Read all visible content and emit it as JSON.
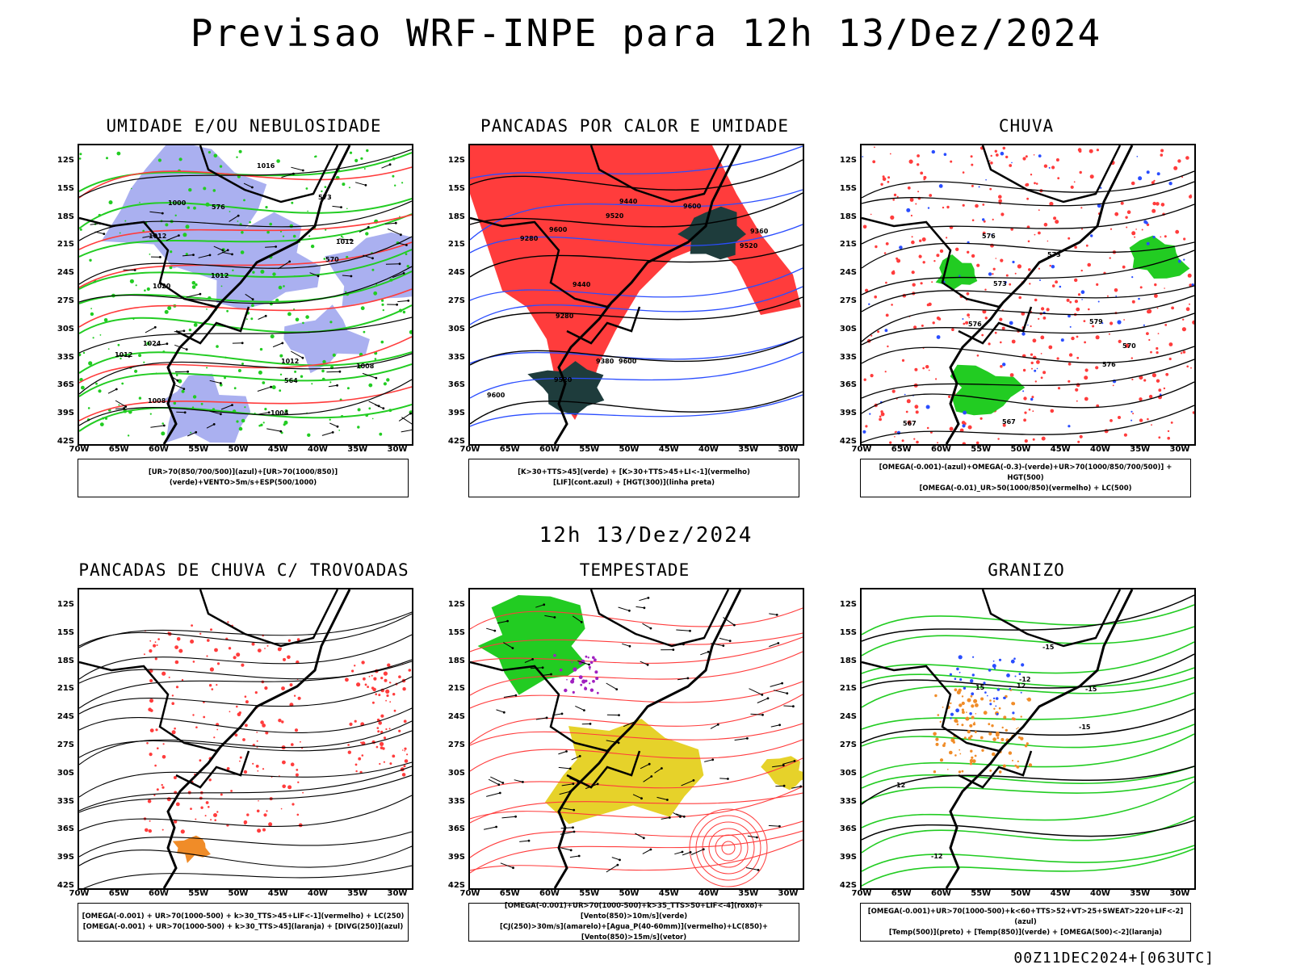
{
  "header": {
    "title": "Previsao WRF-INPE  para 12h 13/Dez/2024",
    "middle_title": "12h 13/Dez/2024"
  },
  "axes": {
    "lat_labels": [
      "12S",
      "15S",
      "18S",
      "21S",
      "24S",
      "27S",
      "30S",
      "33S",
      "36S",
      "39S",
      "42S"
    ],
    "lon_labels": [
      "70W",
      "65W",
      "60W",
      "55W",
      "50W",
      "45W",
      "40W",
      "35W",
      "30W"
    ]
  },
  "panels": [
    {
      "title": "UMIDADE E/OU NEBULOSIDADE",
      "legend": [
        "[UR>70(850/700/500)](azul)+[UR>70(1000/850)](verde)+VENTO>5m/s+ESP(500/1000)"
      ],
      "contour_labels": [
        "1008",
        "1012",
        "1012",
        "1012",
        "1004",
        "1008",
        "1012",
        "1016",
        "1020",
        "1024",
        "1012",
        "1000",
        "570",
        "573",
        "576",
        "564"
      ]
    },
    {
      "title": "PANCADAS POR CALOR E UMIDADE",
      "legend": [
        "[K>30+TTS>45](verde) + [K>30+TTS>45+LI<-1](vermelho)",
        "[LIF](cont.azul) + [HGT(300)](linha preta)"
      ],
      "contour_labels": [
        "9600",
        "9600",
        "9600",
        "9520",
        "9520",
        "9600",
        "9520",
        "9440",
        "9440",
        "9380",
        "9280",
        "9360",
        "9280"
      ]
    },
    {
      "title": "CHUVA",
      "legend": [
        "[OMEGA(-0.001)-(azul)+OMEGA(-0.3)-(verde)+UR>70(1000/850/700/500)] + HGT(500)",
        "[OMEGA(-0.01)_UR>50(1000/850)(vermelho) + LC(500)"
      ],
      "contour_labels": [
        "579",
        "576",
        "576",
        "573",
        "570",
        "567",
        "567",
        "576",
        "573"
      ]
    },
    {
      "title": "PANCADAS DE CHUVA C/ TROVOADAS",
      "legend": [
        "[OMEGA(-0.001) + UR>70(1000-500) + k>30_TTS>45+LIF<-1](vermelho) + LC(250)",
        "[OMEGA(-0.001) + UR>70(1000-500) + k>30_TTS>45](laranja) + [DIVG(250)](azul)"
      ],
      "contour_labels": []
    },
    {
      "title": "TEMPESTADE",
      "legend": [
        "[OMEGA(-0.001)+UR>70(1000-500)+k>35_TTS>50+LIF<-4](roxo)+[Vento(850)>10m/s](verde)",
        "[CJ(250)>30m/s](amarelo)+[Agua_P(40-60mm)](vermelho)+LC(850)+[Vento(850)>15m/s](vetor)"
      ],
      "contour_labels": []
    },
    {
      "title": "GRANIZO",
      "legend": [
        "[OMEGA(-0.001)+UR>70(1000-500)+k<60+TTS>52+VT>25+SWEAT>220+LIF<-2](azul)",
        "[Temp(500)](preto) + [Temp(850)](verde) + [OMEGA(500)<-2](laranja)"
      ],
      "contour_labels": [
        "-15",
        "-12",
        "-12",
        "-15",
        "-15",
        "15",
        "12",
        "12"
      ]
    }
  ],
  "footer": "00Z11DEC2024+[063UTC]",
  "colors": {
    "blue": "#2a4dff",
    "green": "#22cc22",
    "red": "#ff3c3c",
    "lavender": "#aab0f0",
    "dark_green": "#1e3c3c",
    "yellow": "#e6d22a",
    "orange": "#f08c28",
    "purple": "#a020c0"
  }
}
